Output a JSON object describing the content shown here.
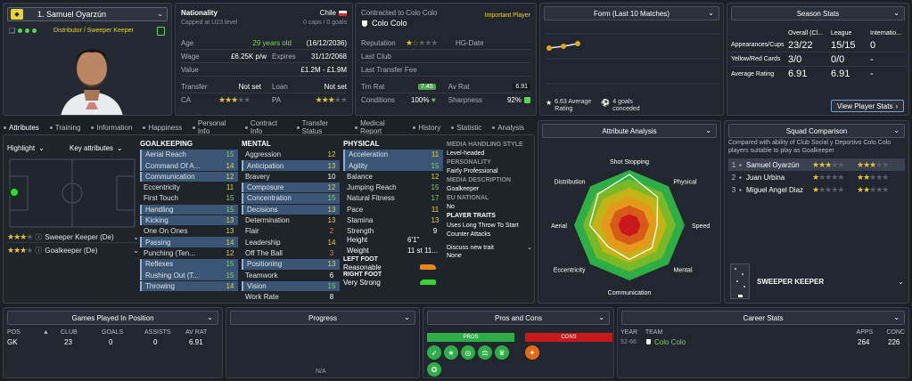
{
  "player": {
    "name": "1. Samuel Oyarzún",
    "role": "Distributor / Sweeper Keeper"
  },
  "info": {
    "nationality_label": "Nationality",
    "nationality": "Chile",
    "capped_note": "Capped at U23 level",
    "caps": "0 caps / 0 goals",
    "age_label": "Age",
    "age": "29 years old",
    "dob": "(16/12/2036)",
    "wage_label": "Wage",
    "wage": "£6.25K p/w",
    "expires_label": "Expires",
    "expires": "31/12/2068",
    "value_label": "Value",
    "value": "£1.2M - £1.9M",
    "transfer_label": "Transfer",
    "transfer": "Not set",
    "loan_label": "Loan",
    "loan": "Not set",
    "ca_label": "CA",
    "pa_label": "PA"
  },
  "contract": {
    "contracted_to": "Contracted to Colo Colo",
    "squad_status": "Important Player",
    "club": "Colo Colo",
    "reputation_label": "Reputation",
    "hg_label": "HG-Date",
    "last_club_label": "Last Club",
    "last_fee_label": "Last Transfer Fee",
    "trn_rat_label": "Trn Rat",
    "trn_rat": "7.45",
    "av_rat_label": "Av Rat",
    "av_rat": "6.91",
    "conditions_label": "Conditions",
    "conditions": "100%",
    "sharpness_label": "Sharpness",
    "sharpness": "92%"
  },
  "form": {
    "title": "Form (Last 10 Matches)",
    "avg_value": "6.63 Average",
    "avg_label": "Rating",
    "goals_value": "4 goals",
    "goals_label": "conceded"
  },
  "season": {
    "title": "Season Stats",
    "col1": "Overall (Cl...",
    "col2": "League",
    "col3": "Internatio...",
    "rows": [
      {
        "label": "Appearances/Cups",
        "a": "23/22",
        "b": "15/15",
        "c": "0"
      },
      {
        "label": "Yellow/Red Cards",
        "a": "3/0",
        "b": "0/0",
        "c": "-"
      },
      {
        "label": "Average Rating",
        "a": "6.91",
        "b": "6.91",
        "c": "-"
      }
    ],
    "button": "View Player Stats"
  },
  "tabs": [
    "Attributes",
    "Training",
    "Information",
    "Happiness",
    "Personal Info",
    "Contract Info",
    "Transfer Status",
    "Medical Report",
    "History",
    "Statistic",
    "Analysis"
  ],
  "left": {
    "highlight": "Highlight",
    "key_attr": "Key attributes",
    "roles": [
      {
        "name": "Sweeper Keeper (De)"
      },
      {
        "name": "Goalkeeper (De)"
      }
    ]
  },
  "goalkeeping": {
    "title": "GOALKEEPING",
    "items": [
      {
        "n": "Aerial Reach",
        "v": "15"
      },
      {
        "n": "Command Of A...",
        "v": "14"
      },
      {
        "n": "Communication",
        "v": "12"
      },
      {
        "n": "Eccentricity",
        "v": "11"
      },
      {
        "n": "First Touch",
        "v": "15"
      },
      {
        "n": "Handling",
        "v": "15"
      },
      {
        "n": "Kicking",
        "v": "13"
      },
      {
        "n": "One On Ones",
        "v": "13"
      },
      {
        "n": "Passing",
        "v": "14"
      },
      {
        "n": "Punching (Ten...",
        "v": "12"
      },
      {
        "n": "Reflexes",
        "v": "15"
      },
      {
        "n": "Rushing Out (T...",
        "v": "15"
      },
      {
        "n": "Throwing",
        "v": "14"
      }
    ]
  },
  "mental": {
    "title": "MENTAL",
    "items": [
      {
        "n": "Aggression",
        "v": "12"
      },
      {
        "n": "Anticipation",
        "v": "13"
      },
      {
        "n": "Bravery",
        "v": "10"
      },
      {
        "n": "Composure",
        "v": "12"
      },
      {
        "n": "Concentration",
        "v": "15"
      },
      {
        "n": "Decisions",
        "v": "13"
      },
      {
        "n": "Determination",
        "v": "13"
      },
      {
        "n": "Flair",
        "v": "2"
      },
      {
        "n": "Leadership",
        "v": "14"
      },
      {
        "n": "Off The Ball",
        "v": "3"
      },
      {
        "n": "Positioning",
        "v": "13"
      },
      {
        "n": "Teamwork",
        "v": "6"
      },
      {
        "n": "Vision",
        "v": "15"
      },
      {
        "n": "Work Rate",
        "v": "8"
      }
    ]
  },
  "physical": {
    "title": "PHYSICAL",
    "items": [
      {
        "n": "Acceleration",
        "v": "11"
      },
      {
        "n": "Agility",
        "v": "15"
      },
      {
        "n": "Balance",
        "v": "12"
      },
      {
        "n": "Jumping Reach",
        "v": "15"
      },
      {
        "n": "Natural Fitness",
        "v": "17"
      },
      {
        "n": "Pace",
        "v": "11"
      },
      {
        "n": "Stamina",
        "v": "13"
      },
      {
        "n": "Strength",
        "v": "9"
      }
    ],
    "height_label": "Height",
    "height": "6'1\"",
    "weight_label": "Weight",
    "weight": "11 st 11...",
    "left_foot_label": "LEFT FOOT",
    "left_foot": "Reasonable",
    "right_foot_label": "RIGHT FOOT",
    "right_foot": "Very Strong"
  },
  "media": {
    "style_label": "MEDIA HANDLING STYLE",
    "style": "Level-headed",
    "personality_label": "PERSONALITY",
    "personality": "Fairly Professional",
    "desc_label": "MEDIA DESCRIPTION",
    "desc": "Goalkeeper",
    "eu_label": "EU NATIONAL",
    "eu": "No",
    "traits_label": "PLAYER TRAITS",
    "trait1": "Uses Long Throw To Start",
    "trait2": "Counter Attacks",
    "discuss": "Discuss new trait",
    "none": "None"
  },
  "analysis": {
    "title": "Attribute Analysis",
    "labels": [
      "Shot Stopping",
      "Physical",
      "Speed",
      "Mental",
      "Communication",
      "Eccentricity",
      "Aerial",
      "Distribution"
    ]
  },
  "squad": {
    "title": "Squad Comparison",
    "desc1": "Compared with ability of Club Social y Deportivo Colo Colo",
    "desc2": "players suitable to play as Goalkeeper",
    "rows": [
      {
        "rank": "1",
        "name": "Samuel Oyarzún"
      },
      {
        "rank": "2",
        "name": "Juan Urbina"
      },
      {
        "rank": "3",
        "name": "Miguel Angel Diaz"
      }
    ],
    "role": "SWEEPER KEEPER"
  },
  "games": {
    "title": "Games Played In Position",
    "cols": [
      "POS",
      "CLUB",
      "GOALS",
      "ASSISTS",
      "AV RAT"
    ],
    "row": [
      "GK",
      "23",
      "0",
      "0",
      "6.91"
    ]
  },
  "progress": {
    "title": "Progress",
    "na": "N/A"
  },
  "pros": {
    "title": "Pros and Cons",
    "pros": "PROS",
    "cons": "CONS"
  },
  "career": {
    "title": "Career Stats",
    "year_h": "YEAR",
    "team_h": "TEAM",
    "apps_h": "APPS",
    "conc_h": "CONC",
    "year": "52-66",
    "team": "Colo Colo",
    "apps": "264",
    "conc": "226"
  },
  "colors": {
    "accent": "#e7d23b",
    "green": "#7ed35a",
    "highlight": "#3b5675",
    "radar_outer": "#2fae48",
    "radar_mid": "#e39a1a",
    "radar_inner": "#c8181b"
  }
}
